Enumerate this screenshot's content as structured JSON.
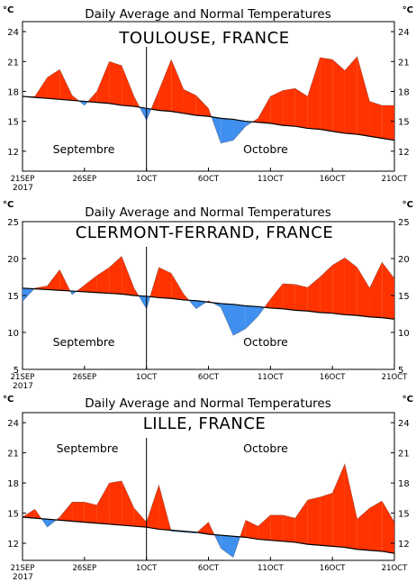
{
  "colors": {
    "above": "#ff3300",
    "below": "#3f8fef",
    "line": "#000000"
  },
  "x_tick_labels": [
    "21SEP",
    "26SEP",
    "1OCT",
    "6OCT",
    "11OCT",
    "16OCT",
    "21OCT"
  ],
  "year_label": "2017",
  "chart_data": [
    {
      "type": "area",
      "title": "Daily Average and Normal Temperatures",
      "city": "TOULOUSE, FRANCE",
      "unit_left": "°C",
      "unit_right": "°C",
      "ylim": [
        10,
        25
      ],
      "yticks": [
        12,
        15,
        18,
        21,
        24
      ],
      "month_labels": [
        "Septembre",
        "Octobre"
      ],
      "x": [
        0,
        1,
        2,
        3,
        4,
        5,
        6,
        7,
        8,
        9,
        10,
        11,
        12,
        13,
        14,
        15,
        16,
        17,
        18,
        19,
        20,
        21,
        22,
        23,
        24,
        25,
        26,
        27,
        28,
        29,
        30
      ],
      "series": [
        {
          "role": "normal",
          "values": [
            17.5,
            17.4,
            17.3,
            17.2,
            17.1,
            17.0,
            16.9,
            16.8,
            16.6,
            16.5,
            16.3,
            16.1,
            16.0,
            15.8,
            15.6,
            15.5,
            15.3,
            15.2,
            15.0,
            14.9,
            14.8,
            14.6,
            14.5,
            14.3,
            14.2,
            14.0,
            13.8,
            13.7,
            13.5,
            13.3,
            13.1
          ]
        },
        {
          "role": "observed",
          "values": [
            17.5,
            17.5,
            19.4,
            20.2,
            17.6,
            16.6,
            18.0,
            21.0,
            20.6,
            17.5,
            15.1,
            18.1,
            21.2,
            18.2,
            17.6,
            16.3,
            12.8,
            13.1,
            14.5,
            15.3,
            17.5,
            18.1,
            18.3,
            17.5,
            21.4,
            21.2,
            20.1,
            21.5,
            17.0,
            16.6,
            16.6
          ]
        }
      ]
    },
    {
      "type": "area",
      "title": "Daily Average and Normal Temperatures",
      "city": "CLERMONT-FERRAND, FRANCE",
      "unit_left": "°C",
      "unit_right": "°C",
      "ylim": [
        5,
        25
      ],
      "yticks": [
        5,
        10,
        15,
        20,
        25
      ],
      "month_labels": [
        "Septembre",
        "Octobre"
      ],
      "x": [
        0,
        1,
        2,
        3,
        4,
        5,
        6,
        7,
        8,
        9,
        10,
        11,
        12,
        13,
        14,
        15,
        16,
        17,
        18,
        19,
        20,
        21,
        22,
        23,
        24,
        25,
        26,
        27,
        28,
        29,
        30
      ],
      "series": [
        {
          "role": "normal",
          "values": [
            16.0,
            15.9,
            15.8,
            15.7,
            15.6,
            15.5,
            15.4,
            15.3,
            15.2,
            15.0,
            14.9,
            14.7,
            14.6,
            14.4,
            14.3,
            14.1,
            13.9,
            13.8,
            13.6,
            13.5,
            13.3,
            13.2,
            13.0,
            12.9,
            12.7,
            12.6,
            12.4,
            12.3,
            12.1,
            12.0,
            11.8
          ]
        },
        {
          "role": "observed",
          "values": [
            14.2,
            16.0,
            16.3,
            18.5,
            15.1,
            16.4,
            17.7,
            18.8,
            20.3,
            16.0,
            13.2,
            18.8,
            18.0,
            15.2,
            13.2,
            14.3,
            13.4,
            9.6,
            10.5,
            12.2,
            14.5,
            16.6,
            16.5,
            16.1,
            17.5,
            19.1,
            20.1,
            18.8,
            16.0,
            19.5,
            17.3
          ]
        }
      ]
    },
    {
      "type": "area",
      "title": "Daily Average and Normal Temperatures",
      "city": "LILLE, FRANCE",
      "unit_left": "°C",
      "unit_right": "°C",
      "ylim": [
        10.3,
        25
      ],
      "yticks": [
        12,
        15,
        18,
        21,
        24
      ],
      "month_labels": [
        "Septembre",
        "Octobre"
      ],
      "x": [
        0,
        1,
        2,
        3,
        4,
        5,
        6,
        7,
        8,
        9,
        10,
        11,
        12,
        13,
        14,
        15,
        16,
        17,
        18,
        19,
        20,
        21,
        22,
        23,
        24,
        25,
        26,
        27,
        28,
        29,
        30
      ],
      "series": [
        {
          "role": "normal",
          "values": [
            14.6,
            14.5,
            14.4,
            14.3,
            14.2,
            14.1,
            14.0,
            13.9,
            13.8,
            13.7,
            13.6,
            13.4,
            13.3,
            13.2,
            13.1,
            12.9,
            12.8,
            12.7,
            12.6,
            12.4,
            12.3,
            12.2,
            12.1,
            11.9,
            11.8,
            11.7,
            11.6,
            11.4,
            11.3,
            11.2,
            11.0
          ]
        },
        {
          "role": "observed",
          "values": [
            14.6,
            15.4,
            13.6,
            14.6,
            16.1,
            16.1,
            15.8,
            18.0,
            18.2,
            15.5,
            14.1,
            17.8,
            13.2,
            13.1,
            13.0,
            14.1,
            11.5,
            10.6,
            14.3,
            13.7,
            14.8,
            14.8,
            14.5,
            16.3,
            16.6,
            17.0,
            19.9,
            14.4,
            15.5,
            16.2,
            14.1
          ]
        }
      ]
    }
  ]
}
